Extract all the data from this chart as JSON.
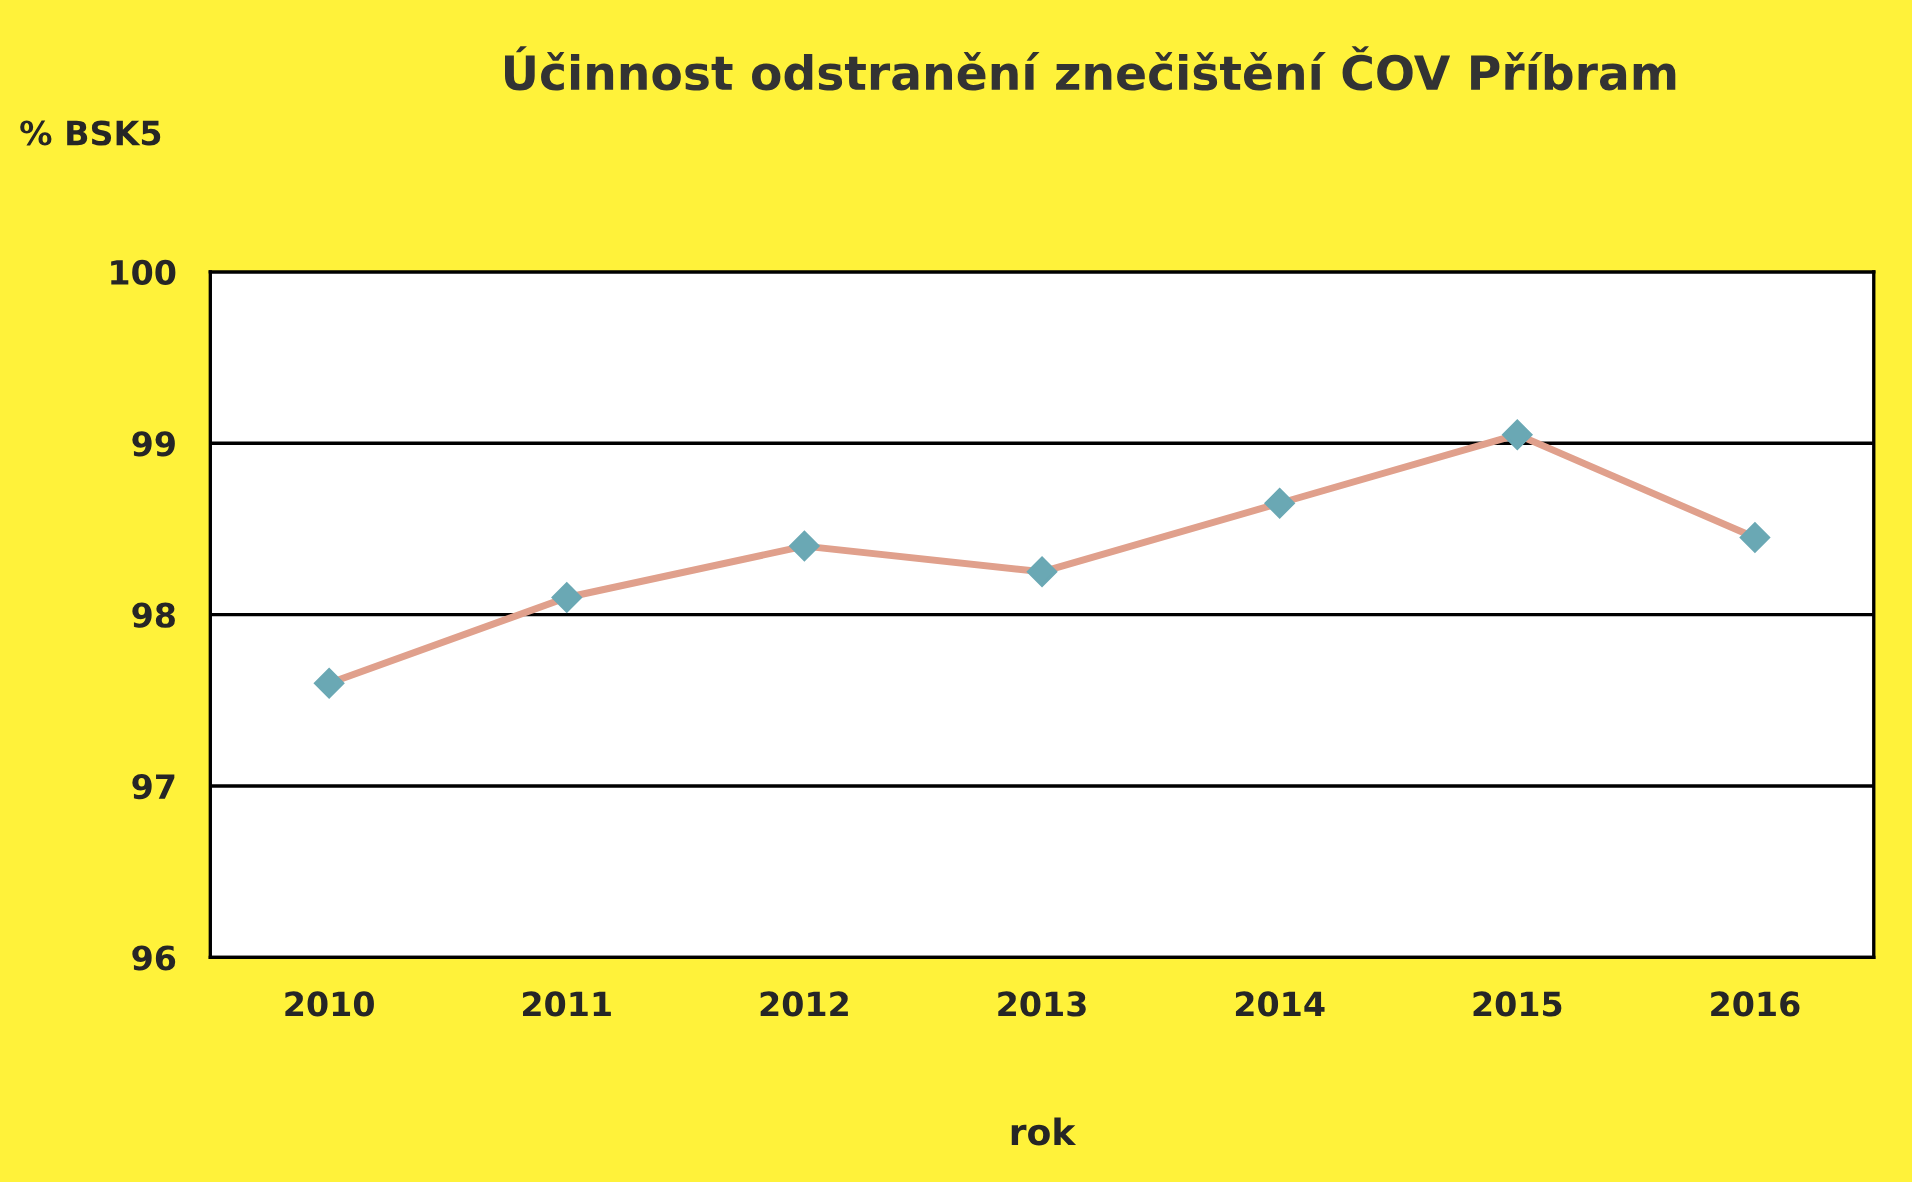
{
  "chart_data": {
    "type": "line",
    "title": "Účinnost odstranění znečištění ČOV Příbram",
    "xlabel": "rok",
    "ylabel": "% BSK5",
    "categories": [
      "2010",
      "2011",
      "2012",
      "2013",
      "2014",
      "2015",
      "2016"
    ],
    "series": [
      {
        "color": "#e0a08c",
        "values": [
          97.6,
          98.1,
          98.4,
          98.25,
          98.65,
          99.05,
          98.45
        ]
      }
    ],
    "ylim": [
      96,
      100
    ],
    "yticks": [
      96,
      97,
      98,
      99,
      100
    ],
    "grid": "y",
    "marker": "diamond",
    "line_style": "solid",
    "legend": false
  }
}
